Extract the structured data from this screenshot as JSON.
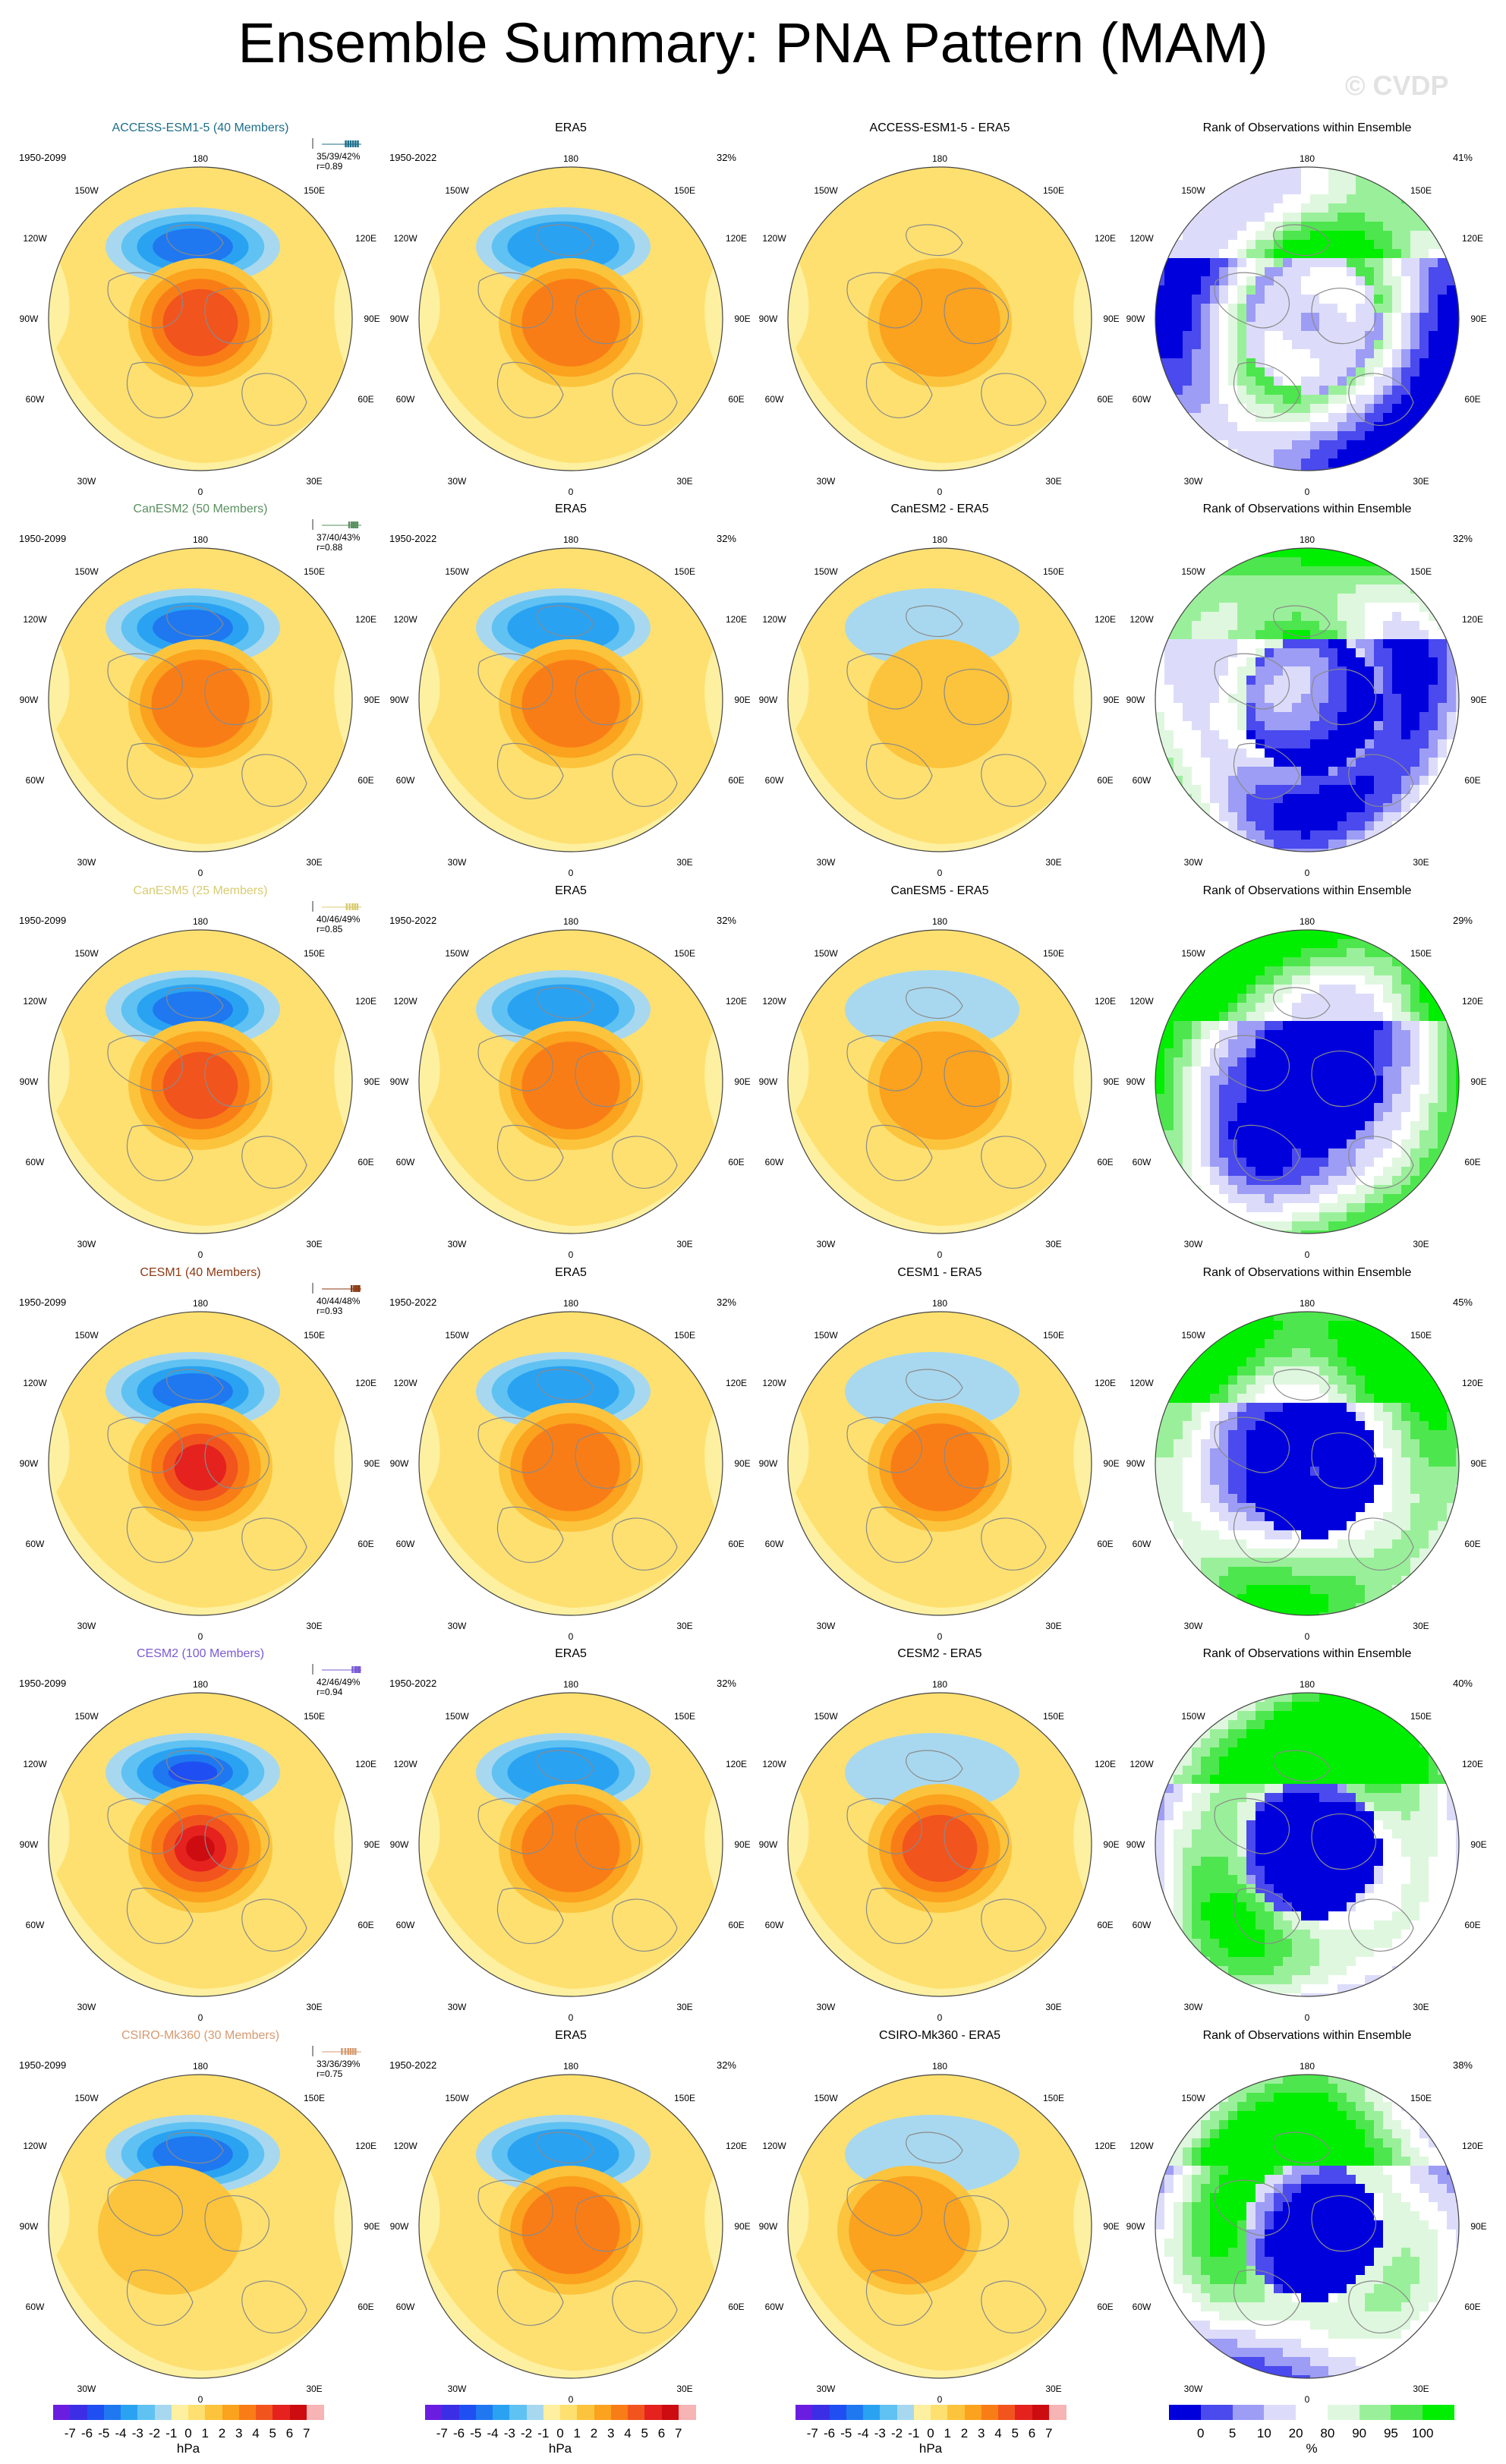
{
  "title": "Ensemble Summary: PNA Pattern (MAM)",
  "watermark": "© CVDP",
  "colors": {
    "land_line": "#8a8a8a",
    "diverging_scale": [
      "#6a1de0",
      "#3b2ee6",
      "#1f4ff2",
      "#1f78f0",
      "#2aa2f2",
      "#5fc2f2",
      "#a8d8ef",
      "#fdf0a0",
      "#fde070",
      "#fcc43c",
      "#fba21e",
      "#f97d16",
      "#f2541e",
      "#e5221e",
      "#cc0c10",
      "#f6b4b4"
    ],
    "rank_scale": [
      "#0000dd",
      "#4a4aee",
      "#9d9df6",
      "#dcdcfa",
      "#ffffff",
      "#dff7df",
      "#9af09a",
      "#4ee64e",
      "#00ee00"
    ]
  },
  "colorbars": [
    {
      "ticks": [
        "-7",
        "-6",
        "-5",
        "-4",
        "-3",
        "-2",
        "-1",
        "0",
        "1",
        "2",
        "3",
        "4",
        "5",
        "6",
        "7"
      ],
      "unit": "hPa"
    },
    {
      "ticks": [
        "-7",
        "-6",
        "-5",
        "-4",
        "-3",
        "-2",
        "-1",
        "0",
        "1",
        "2",
        "3",
        "4",
        "5",
        "6",
        "7"
      ],
      "unit": "hPa"
    },
    {
      "ticks": [
        "-7",
        "-6",
        "-5",
        "-4",
        "-3",
        "-2",
        "-1",
        "0",
        "1",
        "2",
        "3",
        "4",
        "5",
        "6",
        "7"
      ],
      "unit": "hPa"
    },
    {
      "ticks": [
        "0",
        "5",
        "10",
        "20",
        "80",
        "90",
        "95",
        "100"
      ],
      "unit": "%"
    }
  ],
  "map_labels": {
    "top": "180",
    "tl": "150W",
    "tr": "150E",
    "ul": "120W",
    "ur": "120E",
    "ml": "90W",
    "mr": "90E",
    "ll": "60W",
    "lr": "60E",
    "bl": "30W",
    "br": "30E",
    "bottom": "0"
  },
  "rows": [
    {
      "model": "ACCESS-ESM1-5 (40 Members)",
      "model_color": "#1d6e8a",
      "stats": "35/39/42%",
      "r": "r=0.89",
      "spark": [
        0.68,
        0.73,
        0.78,
        0.83,
        0.88,
        0.93
      ],
      "ens_years": "1950-2099",
      "obs_title": "ERA5",
      "obs_years": "1950-2022",
      "obs_pct": "32%",
      "diff_title": "ACCESS-ESM1-5 - ERA5",
      "rank_title": "Rank of Observations within Ensemble",
      "rank_pct": "41%",
      "ens": {
        "neg": -4,
        "pos": 4,
        "ox": 0
      },
      "diff": {
        "neg": 0,
        "pos": 2,
        "ox": 0
      }
    },
    {
      "model": "CanESM2 (50 Members)",
      "model_color": "#5a9060",
      "stats": "37/40/43%",
      "r": "r=0.88",
      "spark": [
        0.75,
        0.8,
        0.84,
        0.88,
        0.92
      ],
      "ens_years": "1950-2099",
      "obs_title": "ERA5",
      "obs_years": "1950-2022",
      "obs_pct": "32%",
      "diff_title": "CanESM2 - ERA5",
      "rank_title": "Rank of Observations within Ensemble",
      "rank_pct": "32%",
      "ens": {
        "neg": -4,
        "pos": 3,
        "ox": 0
      },
      "diff": {
        "neg": -1,
        "pos": 1,
        "ox": 0
      }
    },
    {
      "model": "CanESM5 (25 Members)",
      "model_color": "#d8cc70",
      "stats": "40/46/49%",
      "r": "r=0.85",
      "spark": [
        0.7,
        0.76,
        0.82,
        0.87,
        0.92
      ],
      "ens_years": "1950-2099",
      "obs_title": "ERA5",
      "obs_years": "1950-2022",
      "obs_pct": "32%",
      "diff_title": "CanESM5 - ERA5",
      "rank_title": "Rank of Observations within Ensemble",
      "rank_pct": "29%",
      "ens": {
        "neg": -4,
        "pos": 4,
        "ox": 0
      },
      "diff": {
        "neg": -1,
        "pos": 2,
        "ox": 0
      }
    },
    {
      "model": "CESM1 (40 Members)",
      "model_color": "#8b3a14",
      "stats": "40/44/48%",
      "r": "r=0.93",
      "spark": [
        0.8,
        0.85,
        0.89,
        0.93,
        0.96
      ],
      "ens_years": "1950-2099",
      "obs_title": "ERA5",
      "obs_years": "1950-2022",
      "obs_pct": "32%",
      "diff_title": "CESM1 - ERA5",
      "rank_title": "Rank of Observations within Ensemble",
      "rank_pct": "45%",
      "ens": {
        "neg": -4,
        "pos": 5,
        "ox": 0
      },
      "diff": {
        "neg": -1,
        "pos": 3,
        "ox": 0
      }
    },
    {
      "model": "CESM2 (100 Members)",
      "model_color": "#7a5ad6",
      "stats": "42/46/49%",
      "r": "r=0.94",
      "spark": [
        0.82,
        0.87,
        0.9,
        0.94,
        0.97
      ],
      "ens_years": "1950-2099",
      "obs_title": "ERA5",
      "obs_years": "1950-2022",
      "obs_pct": "32%",
      "diff_title": "CESM2 - ERA5",
      "rank_title": "Rank of Observations within Ensemble",
      "rank_pct": "40%",
      "ens": {
        "neg": -5,
        "pos": 6,
        "ox": 0
      },
      "diff": {
        "neg": -1,
        "pos": 4,
        "ox": 0
      }
    },
    {
      "model": "CSIRO-Mk360 (30 Members)",
      "model_color": "#d79a70",
      "stats": "33/36/39%",
      "r": "r=0.75",
      "spark": [
        0.6,
        0.67,
        0.73,
        0.78,
        0.83,
        0.88
      ],
      "ens_years": "1950-2099",
      "obs_title": "ERA5",
      "obs_years": "1950-2022",
      "obs_pct": "32%",
      "diff_title": "CSIRO-Mk360 - ERA5",
      "rank_title": "Rank of Observations within Ensemble",
      "rank_pct": "38%",
      "ens": {
        "neg": -4,
        "pos": 1,
        "ox": -1
      },
      "diff": {
        "neg": -1,
        "pos": 2,
        "ox": -1
      }
    }
  ]
}
